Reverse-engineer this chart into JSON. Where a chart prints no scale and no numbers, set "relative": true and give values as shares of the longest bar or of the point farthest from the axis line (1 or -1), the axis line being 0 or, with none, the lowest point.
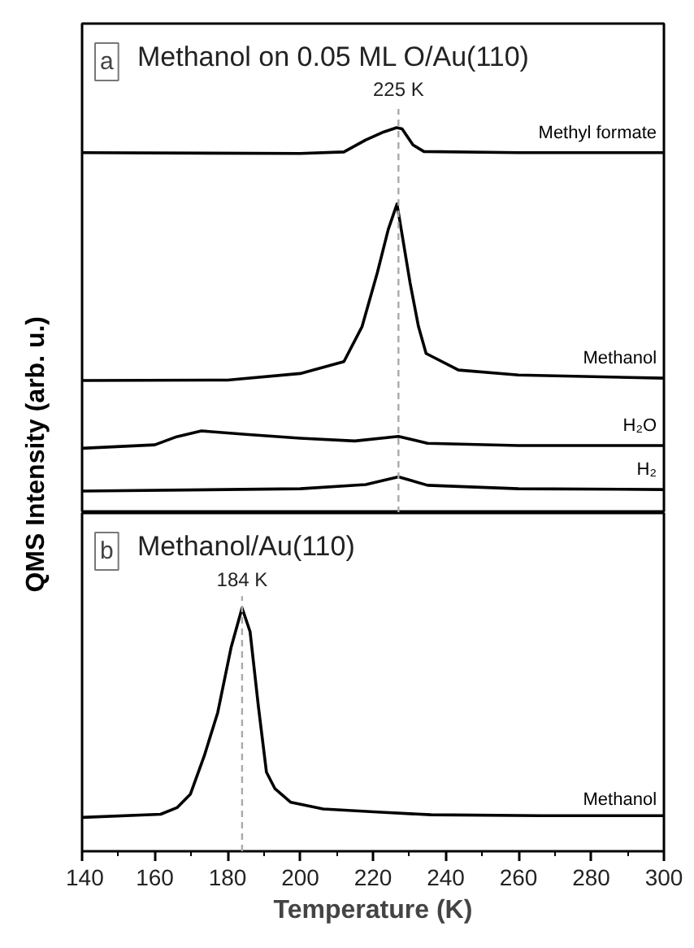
{
  "chart_data": [
    {
      "type": "line",
      "title": "Methanol on 0.05 ML O/Au(110)",
      "annotations": [
        "a"
      ],
      "ylabel": "QMS Intensity (arb. u.)",
      "relative": true,
      "xlim": [
        140,
        300
      ],
      "xticks": [
        140,
        160,
        180,
        200,
        220,
        240,
        260,
        280,
        300
      ],
      "tick_labels": false,
      "grid": false,
      "legend": false,
      "marker": "none",
      "line_style": "solid",
      "ref_lines": [
        {
          "axis": "x",
          "value": 227,
          "label": "225 K",
          "color": "#aaaaaa",
          "line_style": "dashed"
        }
      ],
      "series": [
        {
          "name": "Methyl formate",
          "color": "#000000",
          "x": [
            140,
            200,
            212,
            218,
            223,
            226.5,
            228,
            231,
            234,
            260,
            300
          ],
          "values": [
            0.935,
            0.933,
            0.937,
            0.968,
            0.989,
            1.0,
            0.997,
            0.955,
            0.938,
            0.935,
            0.935
          ]
        },
        {
          "name": "Methanol",
          "color": "#000000",
          "x": [
            140,
            180,
            200,
            212,
            217,
            221.2,
            224.2,
            226.6,
            230.2,
            232.5,
            234.6,
            243.5,
            260,
            300
          ],
          "values": [
            0.344,
            0.345,
            0.362,
            0.393,
            0.484,
            0.624,
            0.736,
            0.802,
            0.597,
            0.484,
            0.414,
            0.371,
            0.358,
            0.35
          ]
        },
        {
          "name": "H₂O",
          "color": "#000000",
          "x": [
            140,
            160,
            166,
            172.8,
            185,
            200,
            215,
            227,
            235,
            260,
            300
          ],
          "values": [
            0.168,
            0.177,
            0.198,
            0.213,
            0.204,
            0.194,
            0.187,
            0.199,
            0.181,
            0.175,
            0.175
          ]
        },
        {
          "name": "H₂",
          "color": "#000000",
          "x": [
            140,
            200,
            218,
            227,
            235,
            260,
            300
          ],
          "values": [
            0.057,
            0.063,
            0.074,
            0.094,
            0.072,
            0.063,
            0.061
          ]
        }
      ]
    },
    {
      "type": "line",
      "title": "Methanol/Au(110)",
      "annotations": [
        "b"
      ],
      "xlabel": "Temperature (K)",
      "relative": true,
      "xlim": [
        140,
        300
      ],
      "xticks": [
        140,
        160,
        180,
        200,
        220,
        240,
        260,
        280,
        300
      ],
      "tick_labels": "x",
      "grid": false,
      "legend": false,
      "marker": "none",
      "line_style": "solid",
      "ref_lines": [
        {
          "axis": "x",
          "value": 184,
          "label": "184 K",
          "color": "#aaaaaa",
          "line_style": "dashed"
        }
      ],
      "series": [
        {
          "name": "Methanol",
          "color": "#000000",
          "x": [
            140,
            161.6,
            166.1,
            169.8,
            173.6,
            177.3,
            181,
            184,
            186.2,
            188.5,
            190.7,
            193,
            197.4,
            206.3,
            221.2,
            236,
            266,
            300
          ],
          "values": [
            0.139,
            0.152,
            0.179,
            0.235,
            0.392,
            0.57,
            0.839,
            1.0,
            0.902,
            0.593,
            0.325,
            0.258,
            0.201,
            0.174,
            0.161,
            0.15,
            0.146,
            0.146
          ]
        }
      ]
    }
  ]
}
